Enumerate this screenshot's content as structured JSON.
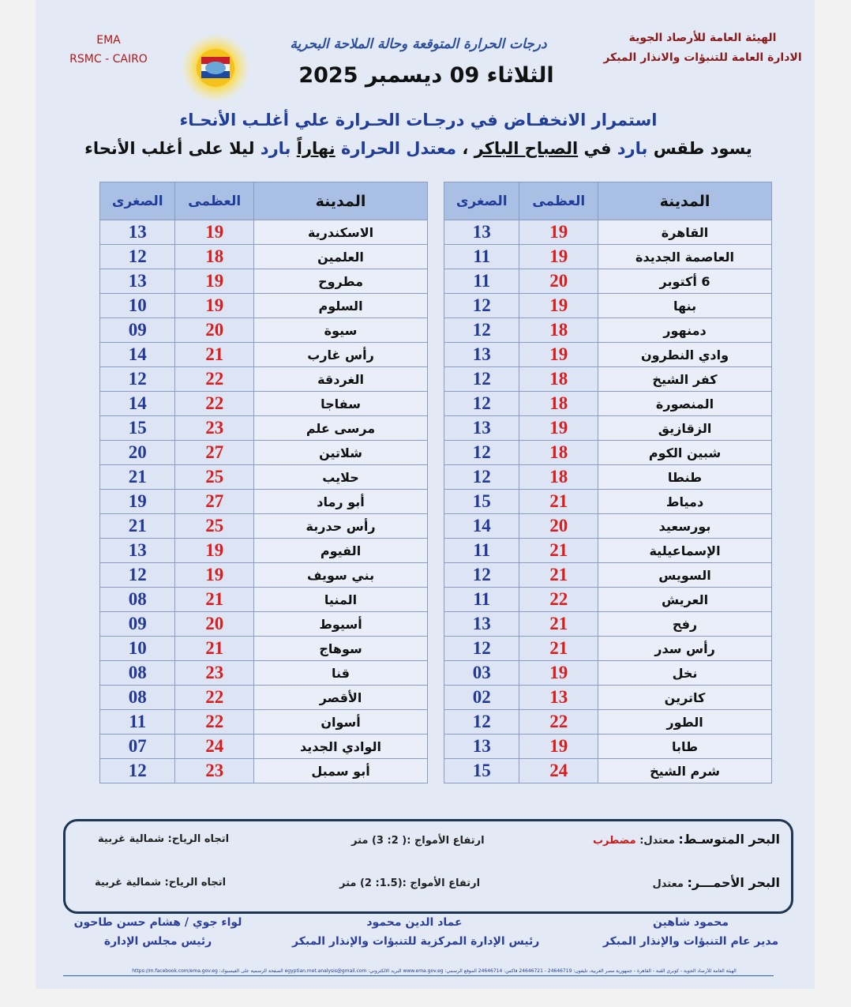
{
  "header": {
    "org_line1": "الهيئة العامة للأرصاد الجوية",
    "org_line2": "الادارة العامة للتنبؤات والانذار المبكر",
    "title": "درجات الحرارة المتوقعة وحالة الملاحة البحرية",
    "date": "الثلاثاء 09 ديسمبر 2025",
    "ema": "EMA",
    "rsmc": "RSMC - CAIRO"
  },
  "headline": "استمرار الانخفـاض في درجـات الحـرارة علي أغلـب الأنحـاء",
  "summary": [
    {
      "text": "يسود طقس",
      "color": "black",
      "underline": false
    },
    {
      "text": "بارد",
      "color": "blue",
      "underline": false
    },
    {
      "text": "في",
      "color": "black",
      "underline": false
    },
    {
      "text": "الصباح الباكر",
      "color": "black",
      "underline": true
    },
    {
      "text": "،",
      "color": "black",
      "underline": false
    },
    {
      "text": "معتدل الحرارة",
      "color": "blue",
      "underline": false
    },
    {
      "text": "نهاراً",
      "color": "black",
      "underline": true
    },
    {
      "text": "بارد",
      "color": "blue",
      "underline": false
    },
    {
      "text": "ليلا على أغلب الأنحاء",
      "color": "black",
      "underline": false
    }
  ],
  "table_right": {
    "columns": [
      "المدينة",
      "العظمى",
      "الصغرى"
    ],
    "rows": [
      [
        "القاهرة",
        "19",
        "13"
      ],
      [
        "العاصمة الجديدة",
        "19",
        "11"
      ],
      [
        "6 أكتوبر",
        "20",
        "11"
      ],
      [
        "بنها",
        "19",
        "12"
      ],
      [
        "دمنهور",
        "18",
        "12"
      ],
      [
        "وادي النطرون",
        "19",
        "13"
      ],
      [
        "كفر الشيخ",
        "18",
        "12"
      ],
      [
        "المنصورة",
        "18",
        "12"
      ],
      [
        "الزقازيق",
        "19",
        "13"
      ],
      [
        "شبين الكوم",
        "18",
        "12"
      ],
      [
        "طنطا",
        "18",
        "12"
      ],
      [
        "دمياط",
        "21",
        "15"
      ],
      [
        "بورسعيد",
        "20",
        "14"
      ],
      [
        "الإسماعيلية",
        "21",
        "11"
      ],
      [
        "السويس",
        "21",
        "12"
      ],
      [
        "العريش",
        "22",
        "11"
      ],
      [
        "رفح",
        "21",
        "13"
      ],
      [
        "رأس سدر",
        "21",
        "12"
      ],
      [
        "نخل",
        "19",
        "03"
      ],
      [
        "كاترين",
        "13",
        "02"
      ],
      [
        "الطور",
        "22",
        "12"
      ],
      [
        "طابا",
        "19",
        "13"
      ],
      [
        "شرم الشيخ",
        "24",
        "15"
      ]
    ]
  },
  "table_left": {
    "columns": [
      "المدينة",
      "العظمى",
      "الصغرى"
    ],
    "rows": [
      [
        "الاسكندرية",
        "19",
        "13"
      ],
      [
        "العلمين",
        "18",
        "12"
      ],
      [
        "مطروح",
        "19",
        "13"
      ],
      [
        "السلوم",
        "19",
        "10"
      ],
      [
        "سيوة",
        "20",
        "09"
      ],
      [
        "رأس غارب",
        "21",
        "14"
      ],
      [
        "الغردقة",
        "22",
        "12"
      ],
      [
        "سفاجا",
        "22",
        "14"
      ],
      [
        "مرسى علم",
        "23",
        "15"
      ],
      [
        "شلاتين",
        "27",
        "20"
      ],
      [
        "حلايب",
        "25",
        "21"
      ],
      [
        "أبو رماد",
        "27",
        "19"
      ],
      [
        "رأس حدربة",
        "25",
        "21"
      ],
      [
        "الفيوم",
        "19",
        "13"
      ],
      [
        "بني سويف",
        "19",
        "12"
      ],
      [
        "المنيا",
        "21",
        "08"
      ],
      [
        "أسيوط",
        "20",
        "09"
      ],
      [
        "سوهاج",
        "21",
        "10"
      ],
      [
        "قنا",
        "23",
        "08"
      ],
      [
        "الأقصر",
        "22",
        "08"
      ],
      [
        "أسوان",
        "22",
        "11"
      ],
      [
        "الوادي الجديد",
        "24",
        "07"
      ],
      [
        "أبو سمبل",
        "23",
        "12"
      ]
    ]
  },
  "sea": {
    "mediterranean": {
      "name": "البحر المتوسـط:",
      "state": "معتدل:",
      "state_extra": "مضطرب",
      "waves": "ارتفاع الأمواج :( 2: 3) متر",
      "wind": "اتجاه الرياح: شمالية غربية"
    },
    "red_sea": {
      "name": "البحر الأحمـــر:",
      "state": "معتدل",
      "waves": "ارتفاع الأمواج :(1.5: 2) متر",
      "wind": "اتجاه الرياح: شمالية غربية"
    }
  },
  "signatures": [
    {
      "name": "محمود شاهين",
      "role": "مدير عام التنبؤات والإنذار المبكر"
    },
    {
      "name": "عماد الدين محمود",
      "role": "رئيس الإدارة المركزية للتنبؤات والإنذار المبكر"
    },
    {
      "name": "لواء جوي / هشام حسن طاحون",
      "role": "رئيس مجلس الإدارة"
    }
  ],
  "footer_line": "الهيئة العامة للأرصاد الجوية - كوبري القبة - القاهرة - جمهورية مصر العربية، تليفون: 24646719 - 24646721 فاكس: 24646714 الموقع الرسمي: www.ema.gov.eg البريد الالكتروني: egyptian.met.analysis@gmail.com الصفحة الرسمية على الفيسبوك: https://m.facebook.com/ema.gov.eg"
}
